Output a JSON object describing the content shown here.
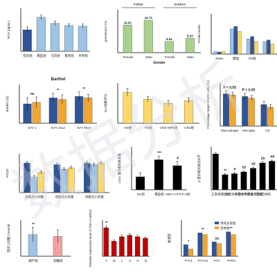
{
  "colors": {
    "blue": "#2f5597",
    "lightblue": "#9dc3e6",
    "orange": "#f4a52d",
    "yellow": "#ffd966",
    "green": "#70ad47",
    "lightgreen": "#a9d18e",
    "red": "#c00000",
    "pink": "#f2a0a0",
    "black": "#000000",
    "gray": "#7f7f7f"
  },
  "watermark": {
    "text": "数据分析"
  },
  "chart_data": [
    {
      "id": "c1",
      "type": "bar",
      "ylabel": "ROS (ng/mL)",
      "categories": [
        "空白组",
        "模型组",
        "乌药组",
        "黄芪组",
        "丹参组"
      ],
      "values": [
        60,
        95,
        78,
        72,
        70
      ],
      "errors": [
        8,
        6,
        6,
        5,
        6
      ],
      "annotations": [
        "",
        "",
        "",
        "",
        ""
      ],
      "ylim": [
        0,
        120
      ]
    },
    {
      "id": "c2",
      "type": "bar",
      "ylabel": "prevalence (%)",
      "xlabel": "Gender",
      "group_labels": [
        "indoor",
        "outdoor"
      ],
      "categories": [
        "Female",
        "Male",
        "Female",
        "Male"
      ],
      "values": [
        16.02,
        18.75,
        6.54,
        8.33
      ],
      "value_labels": [
        "16.02",
        "18.75",
        "6.54",
        "8.33"
      ],
      "ylim": [
        0,
        25
      ]
    },
    {
      "id": "c3",
      "type": "bar",
      "ylabel": "Protein levels",
      "categories": [
        "Sham",
        "模型",
        "PD组",
        ""
      ],
      "series": [
        {
          "values": [
            0.05,
            0.5,
            0.3,
            0.25
          ]
        },
        {
          "values": [
            0.04,
            0.55,
            0.35,
            0.28
          ]
        },
        {
          "values": [
            0.05,
            0.45,
            0.25,
            0.2
          ]
        }
      ],
      "ylim": [
        0,
        0.8
      ]
    },
    {
      "id": "c4",
      "type": "bar",
      "title": "Barthel",
      "ylabel": "Barthel (分)",
      "categories": [
        "DAY 1",
        "DAY 10±2",
        "DAY 90±7"
      ],
      "series": [
        {
          "values": [
            65,
            85,
            90
          ],
          "errors": [
            20,
            15,
            15
          ]
        },
        {
          "values": [
            70,
            80,
            85
          ],
          "errors": [
            18,
            15,
            12
          ]
        }
      ],
      "annotations": [
        "ns",
        "**",
        "**"
      ],
      "ylim": [
        0,
        130
      ]
    },
    {
      "id": "c5",
      "type": "bar",
      "ylabel": "SLS指数评分",
      "categories": [
        "NS组",
        "PD组",
        "CRZ+NPD组",
        "CRZ组"
      ],
      "values": [
        23,
        18,
        15,
        17
      ],
      "errors": [
        3,
        2,
        2,
        2
      ],
      "ylim": [
        0,
        30
      ]
    },
    {
      "id": "c6",
      "type": "bar",
      "ylabel": "Percentage target CD47+ cells (%)",
      "categories": [
        "Macrophage",
        "Microglia",
        "CD"
      ],
      "series": [
        {
          "values": [
            60,
            55,
            40
          ],
          "errors": [
            6,
            6,
            6
          ]
        },
        {
          "values": [
            58,
            52,
            35
          ],
          "errors": [
            5,
            5,
            5
          ]
        }
      ],
      "annotations": [
        "P = 0.05",
        "P = 0.05",
        ""
      ],
      "ylim": [
        0,
        80
      ]
    },
    {
      "id": "c7",
      "type": "bar",
      "ylabel": "FDQG",
      "categories": [
        "双靶点小剂量",
        "双靶点大剂量",
        "单靶点小剂量"
      ],
      "series": [
        {
          "values": [
            19,
            18,
            19
          ],
          "errors": [
            1,
            1,
            1
          ]
        },
        {
          "values": [
            10,
            15,
            18
          ],
          "errors": [
            1,
            1,
            1
          ]
        },
        {
          "values": [
            13,
            16,
            19
          ],
          "errors": [
            1,
            1,
            1
          ]
        }
      ],
      "ylim": [
        0,
        25
      ]
    },
    {
      "id": "c8",
      "type": "bar",
      "ylabel": "Cox1 蛋白相对表达量",
      "categories": [
        "NC组",
        "模型组",
        "HBO+YSTLP-II组"
      ],
      "values": [
        0.15,
        0.35,
        0.28
      ],
      "errors": [
        0.05,
        0.04,
        0.05
      ],
      "annotations": [
        "",
        "***",
        "#"
      ],
      "ylim": [
        0,
        0.5
      ]
    },
    {
      "id": "c9",
      "type": "bar",
      "ylabel": "p-蛋白相对表达水平",
      "categories": [
        "正常组",
        "模型组",
        "中药高剂量组",
        "中药中剂量组",
        "中药低剂量组",
        "阿司匹林组",
        ""
      ],
      "values": [
        1.0,
        0.42,
        0.45,
        0.5,
        0.6,
        0.75,
        0.8
      ],
      "errors": [
        0.03,
        0.03,
        0.03,
        0.03,
        0.03,
        0.03,
        0.03
      ],
      "annotations": [
        "",
        "**",
        "#",
        "##",
        "##",
        "##",
        "##"
      ],
      "ylim": [
        0,
        1.2
      ]
    },
    {
      "id": "c10",
      "type": "bar",
      "ylabel": "超声心动图 Centroid",
      "categories": [
        "顺产组",
        "剖腹组"
      ],
      "values": [
        60,
        55
      ],
      "errors": [
        20,
        18
      ],
      "annotations": [
        "**"
      ],
      "ylim": [
        0,
        100
      ]
    },
    {
      "id": "c11",
      "type": "bar",
      "ylabel": "Relative expression level of TNF-α mRNA",
      "categories": [
        "A",
        "M",
        "L",
        "Z",
        "H",
        "Q"
      ],
      "values": [
        0.95,
        0.5,
        0.65,
        0.7,
        0.65,
        0.6
      ],
      "errors": [
        0.05,
        0.04,
        0.05,
        0.05,
        0.05,
        0.04
      ],
      "annotations": [
        "**",
        "",
        "",
        "",
        "",
        ""
      ],
      "ylim": [
        0,
        1.2
      ]
    },
    {
      "id": "c12",
      "type": "bar",
      "ylabel": "敏感度",
      "categories": [
        "PTV1",
        "PTV1N",
        "PTC",
        "PTPN"
      ],
      "series": [
        {
          "name": "单纯支架组",
          "values": [
            3.2,
            6.5,
            4.0,
            6.8
          ]
        },
        {
          "name": "合并组",
          "values": [
            2.0,
            6.0,
            3.5,
            6.0
          ]
        }
      ],
      "annotations": [
        "*",
        "**",
        "ns",
        "**"
      ],
      "ylim": [
        0,
        10
      ]
    }
  ]
}
